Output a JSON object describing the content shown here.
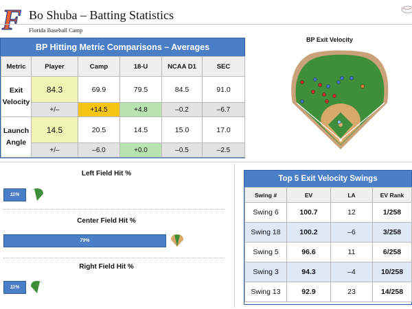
{
  "header": {
    "title": "Bo Shuba – Batting Statistics",
    "subtitle": "Florida Baseball Camp",
    "logo_letter": "F",
    "logo_color": "#f4622a"
  },
  "metrics": {
    "banner": "BP Hitting Metric Comparisons – Averages",
    "columns": [
      "Metric",
      "Player",
      "Camp",
      "18-U",
      "NCAA D1",
      "SEC"
    ],
    "rows": [
      {
        "name_line1": "Exit",
        "name_line2": "Velocity",
        "values": [
          "84.3",
          "69.9",
          "79.5",
          "84.5",
          "91.0"
        ],
        "diffs": [
          "+/–",
          "+14.5",
          "+4.8",
          "–0.2",
          "–6.7"
        ]
      },
      {
        "name_line1": "Launch",
        "name_line2": "Angle",
        "values": [
          "14.5",
          "20.5",
          "14.5",
          "15.0",
          "17.0"
        ],
        "diffs": [
          "+/–",
          "–6.0",
          "+0.0",
          "–0.5",
          "–2.5"
        ]
      }
    ]
  },
  "field": {
    "title": "BP Exit Velocity",
    "colors": {
      "grass": "#3f8f3a",
      "dirt": "#d9a86b",
      "warning_track": "#c9a27a"
    },
    "hits": [
      {
        "color": "#d62b2b"
      },
      {
        "color": "#d62b2b"
      },
      {
        "color": "#d62b2b"
      },
      {
        "color": "#d62b2b"
      },
      {
        "color": "#d62b2b"
      },
      {
        "color": "#d62b2b"
      },
      {
        "color": "#3b74c9"
      },
      {
        "color": "#3b74c9"
      },
      {
        "color": "#3b74c9"
      },
      {
        "color": "#3b74c9"
      },
      {
        "color": "#3b74c9"
      },
      {
        "color": "#3b74c9"
      },
      {
        "color": "#e8843a"
      },
      {
        "color": "#8bc0e8"
      }
    ]
  },
  "hit_percent": {
    "left": {
      "title": "Left Field Hit %",
      "label": "11%",
      "value": 11,
      "icon": "field-left-icon"
    },
    "center": {
      "title": "Center Field Hit %",
      "label": "79%",
      "value": 79,
      "icon": "field-center-icon"
    },
    "right": {
      "title": "Right Field Hit %",
      "label": "11%",
      "value": 11,
      "icon": "field-right-icon"
    }
  },
  "top5": {
    "banner": "Top 5 Exit Velocity Swings",
    "columns": [
      "Swing #",
      "EV",
      "LA",
      "EV Rank"
    ],
    "rows": [
      [
        "Swing 6",
        "100.7",
        "12",
        "1/258"
      ],
      [
        "Swing 18",
        "100.2",
        "–6",
        "3/258"
      ],
      [
        "Swing 5",
        "96.6",
        "11",
        "6/258"
      ],
      [
        "Swing 3",
        "94.3",
        "–4",
        "10/258"
      ],
      [
        "Swing 13",
        "92.9",
        "23",
        "14/258"
      ]
    ]
  },
  "colors": {
    "accent_blue": "#4a7fc6",
    "player_highlight": "#f1f5b4",
    "gold_highlight": "#f6c412",
    "green_highlight": "#b9e3b1"
  }
}
